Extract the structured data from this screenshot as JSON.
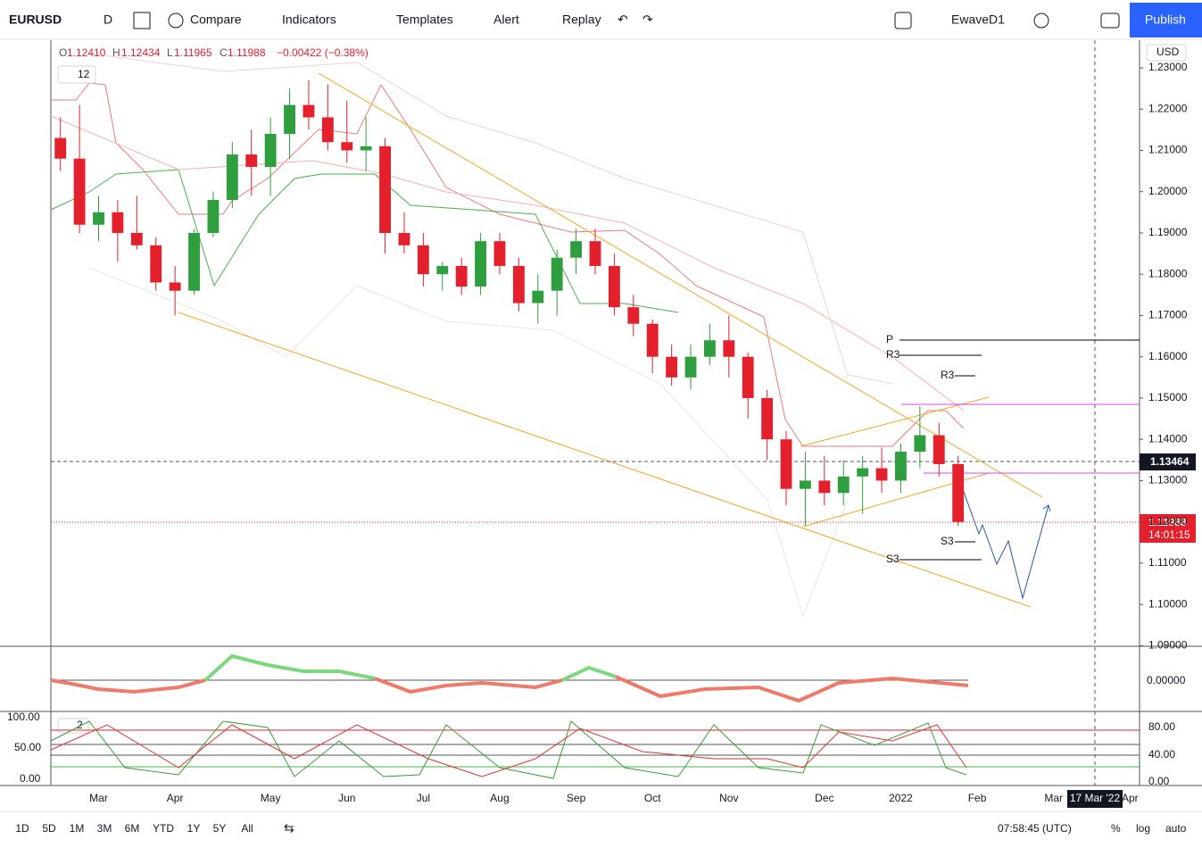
{
  "toolbar": {
    "symbol": "EURUSD",
    "interval": "D",
    "compare": "Compare",
    "indicators": "Indicators",
    "templates": "Templates",
    "alert": "Alert",
    "replay": "Replay",
    "layout": "EwaveD1",
    "publish": "Publish"
  },
  "legend": {
    "o_label": "O",
    "o": "1.12410",
    "h_label": "H",
    "h": "1.12434",
    "l_label": "L",
    "l": "1.11965",
    "c_label": "C",
    "c": "1.11988",
    "change": "−0.00422 (−0.38%)",
    "indicator_count": "12"
  },
  "chart_data": {
    "type": "candlestick",
    "categories": [
      null,
      null,
      "Mar",
      null,
      null,
      null,
      "Apr",
      null,
      null,
      null,
      null,
      "May",
      null,
      null,
      null,
      "Jun",
      null,
      null,
      null,
      "Jul",
      null,
      null,
      null,
      "Aug",
      null,
      null,
      null,
      "Sep",
      null,
      null,
      null,
      "Oct",
      null,
      null,
      null,
      "Nov",
      null,
      null,
      null,
      null,
      "Dec",
      null,
      null,
      null,
      "2022",
      null,
      null,
      null,
      "Feb",
      null,
      null,
      null,
      "Mar",
      null,
      null,
      null,
      "Apr"
    ],
    "open": [
      1.213,
      1.208,
      1.192,
      1.195,
      1.19,
      1.187,
      1.178,
      1.176,
      1.19,
      1.198,
      1.209,
      1.206,
      1.214,
      1.221,
      1.218,
      1.212,
      1.21,
      1.211,
      1.19,
      1.187,
      1.18,
      1.182,
      1.177,
      1.188,
      1.182,
      1.173,
      1.176,
      1.184,
      1.188,
      1.182,
      1.172,
      1.168,
      1.16,
      1.155,
      1.16,
      1.164,
      1.16,
      1.15,
      1.14,
      1.128,
      1.13,
      1.127,
      1.131,
      1.133,
      1.13,
      1.137,
      1.141,
      1.134,
      null,
      null,
      null,
      null,
      null,
      null,
      null,
      null,
      null
    ],
    "high": [
      1.218,
      1.221,
      1.199,
      1.198,
      1.199,
      1.189,
      1.182,
      1.191,
      1.2,
      1.212,
      1.215,
      1.218,
      1.225,
      1.227,
      1.226,
      1.222,
      1.218,
      1.213,
      1.195,
      1.19,
      1.183,
      1.184,
      1.19,
      1.19,
      1.184,
      1.18,
      1.186,
      1.191,
      1.191,
      1.185,
      1.175,
      1.169,
      1.163,
      1.163,
      1.168,
      1.17,
      1.161,
      1.152,
      1.142,
      1.137,
      1.136,
      1.135,
      1.136,
      1.138,
      1.139,
      1.148,
      1.144,
      1.136,
      null,
      null,
      null,
      null,
      null,
      null,
      null,
      null,
      null
    ],
    "low": [
      1.205,
      1.19,
      1.188,
      1.183,
      1.186,
      1.176,
      1.17,
      1.175,
      1.189,
      1.196,
      1.199,
      1.199,
      1.208,
      1.215,
      1.21,
      1.207,
      1.205,
      1.185,
      1.185,
      1.177,
      1.176,
      1.175,
      1.175,
      1.18,
      1.171,
      1.168,
      1.17,
      1.18,
      1.18,
      1.17,
      1.165,
      1.156,
      1.153,
      1.152,
      1.158,
      1.155,
      1.145,
      1.135,
      1.124,
      1.119,
      1.124,
      1.124,
      1.122,
      1.127,
      1.127,
      1.133,
      1.131,
      1.119,
      null,
      null,
      null,
      null,
      null,
      null,
      null,
      null,
      null
    ],
    "close": [
      1.208,
      1.192,
      1.195,
      1.19,
      1.187,
      1.178,
      1.176,
      1.19,
      1.198,
      1.209,
      1.206,
      1.214,
      1.221,
      1.218,
      1.212,
      1.21,
      1.211,
      1.19,
      1.187,
      1.18,
      1.182,
      1.177,
      1.188,
      1.182,
      1.173,
      1.176,
      1.184,
      1.188,
      1.182,
      1.172,
      1.168,
      1.16,
      1.155,
      1.16,
      1.164,
      1.16,
      1.15,
      1.14,
      1.128,
      1.13,
      1.127,
      1.131,
      1.133,
      1.13,
      1.137,
      1.141,
      1.134,
      1.12,
      null,
      null,
      null,
      null,
      null,
      null,
      null,
      null,
      null
    ],
    "up_color": "#2e9e3e",
    "down_color": "#e3202c",
    "currency": "USD",
    "ylim": [
      1.0903,
      1.2367
    ],
    "yticks": [
      {
        "value": 1.09,
        "label": "1.09000"
      },
      {
        "value": 1.1,
        "label": "1.10000"
      },
      {
        "value": 1.11,
        "label": "1.11000"
      },
      {
        "value": 1.12,
        "label": "1.12000"
      },
      {
        "value": 1.13,
        "label": "1.13000"
      },
      {
        "value": 1.14,
        "label": "1.14000"
      },
      {
        "value": 1.15,
        "label": "1.15000"
      },
      {
        "value": 1.16,
        "label": "1.16000"
      },
      {
        "value": 1.17,
        "label": "1.17000"
      },
      {
        "value": 1.18,
        "label": "1.18000"
      },
      {
        "value": 1.19,
        "label": "1.19000"
      },
      {
        "value": 1.2,
        "label": "1.20000"
      },
      {
        "value": 1.21,
        "label": "1.21000"
      },
      {
        "value": 1.22,
        "label": "1.22000"
      },
      {
        "value": 1.23,
        "label": "1.23000"
      }
    ]
  },
  "price_labels": {
    "crosshair": "1.13464",
    "last": "1.11988",
    "countdown": "14:01:15"
  },
  "pivots": {
    "p": "P",
    "r3_a": "R3",
    "r3_b": "R3",
    "s3_a": "S3",
    "s3_b": "S3"
  },
  "oscillator": {
    "tick": "0.00000"
  },
  "stochastic": {
    "count": "2",
    "left_ticks": [
      "100.00",
      "50.00",
      "0.00"
    ],
    "right_ticks": [
      "80.00",
      "40.00",
      "0.00"
    ]
  },
  "date_label": "17 Mar '22",
  "bottom_bar": {
    "ranges": [
      "1D",
      "5D",
      "1M",
      "3M",
      "6M",
      "YTD",
      "1Y",
      "5Y",
      "All"
    ],
    "time": "07:58:45 (UTC)",
    "percent": "%",
    "log": "log",
    "auto": "auto"
  }
}
